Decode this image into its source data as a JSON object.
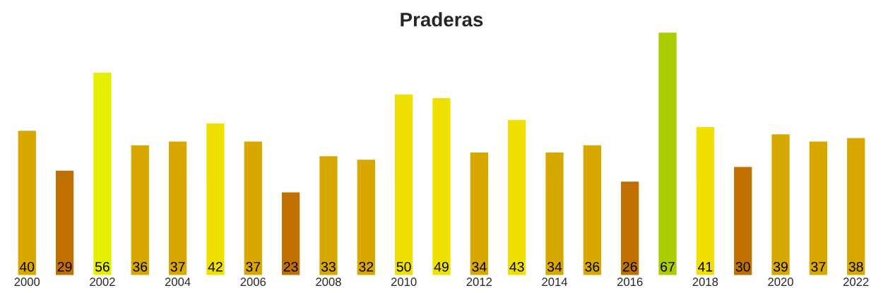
{
  "chart_data": {
    "type": "bar",
    "title": "Praderas",
    "categories": [
      "2000",
      null,
      "2002",
      null,
      "2004",
      null,
      "2006",
      null,
      "2008",
      null,
      "2010",
      null,
      "2012",
      null,
      "2014",
      null,
      "2016",
      null,
      "2018",
      null,
      "2020",
      null,
      "2022"
    ],
    "values": [
      40,
      29,
      56,
      36,
      37,
      42,
      37,
      23,
      33,
      32,
      50,
      49,
      34,
      43,
      34,
      36,
      26,
      67,
      41,
      30,
      39,
      37,
      38
    ],
    "colors": [
      "#d9a800",
      "#c07000",
      "#e6ee00",
      "#d9a800",
      "#d9a800",
      "#f0e000",
      "#d9a800",
      "#c07000",
      "#d9a800",
      "#d9a800",
      "#f0e000",
      "#f0e000",
      "#d9a800",
      "#f0e000",
      "#d9a800",
      "#d9a800",
      "#c07000",
      "#aacc00",
      "#f0e000",
      "#c07000",
      "#d9a800",
      "#d9a800",
      "#d9a800"
    ],
    "data_labels": true,
    "grid": false,
    "legend": false
  }
}
